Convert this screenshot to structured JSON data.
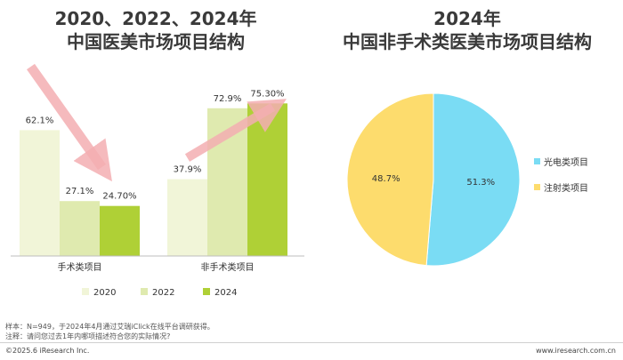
{
  "titles": {
    "left": [
      "2020、2022、2024年",
      "中国医美市场项目结构"
    ],
    "right": [
      "2024年",
      "中国非手术类医美市场项目结构"
    ]
  },
  "chart_data": [
    {
      "type": "bar",
      "title": "2020、2022、2024年中国医美市场项目结构",
      "categories": [
        "手术类项目",
        "非手术类项目"
      ],
      "series": [
        {
          "name": "2020",
          "values": [
            62.1,
            37.9
          ],
          "labels": [
            "62.1%",
            "37.9%"
          ],
          "color": "#f1f5d8"
        },
        {
          "name": "2022",
          "values": [
            27.1,
            72.9
          ],
          "labels": [
            "27.1%",
            "72.9%"
          ],
          "color": "#dfeaaf"
        },
        {
          "name": "2024",
          "values": [
            24.7,
            75.3
          ],
          "labels": [
            "24.70%",
            "75.30%"
          ],
          "color": "#afd036"
        }
      ],
      "ylim": [
        0,
        100
      ],
      "legend_position": "bottom",
      "arrow_color": "#f3aeb2"
    },
    {
      "type": "pie",
      "title": "2024年中国非手术类医美市场项目结构",
      "slices": [
        {
          "name": "光电类项目",
          "value": 51.3,
          "label": "51.3%",
          "color": "#7adcf4"
        },
        {
          "name": "注射类项目",
          "value": 48.7,
          "label": "48.7%",
          "color": "#fddc6d"
        }
      ],
      "legend_position": "right"
    }
  ],
  "notes": {
    "sample": "样本：N=949，于2024年4月通过艾瑞iClick在线平台调研获得。",
    "remark": "注释：请问您过去1年内哪项描述符合您的实际情况?"
  },
  "footer": {
    "copyright": "©2025.6 iResearch Inc.",
    "website": "www.iresearch.com.cn"
  }
}
